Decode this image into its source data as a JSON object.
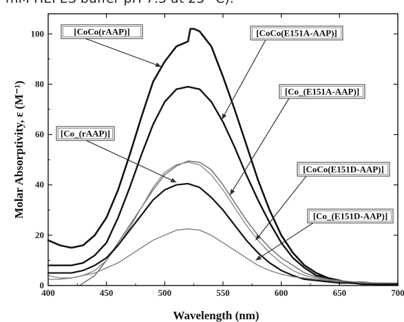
{
  "caption_fragment": "mM HEPES buffer pH 7.5 at 25 °C).",
  "chart_data": {
    "type": "line",
    "xlabel": "Wavelength (nm)",
    "ylabel": "Molar Absorptivity, ε (M⁻¹)",
    "xlim": [
      400,
      700
    ],
    "ylim": [
      0,
      108
    ],
    "xticks": [
      400,
      450,
      500,
      550,
      600,
      650,
      700
    ],
    "yticks": [
      0,
      20,
      40,
      60,
      80,
      100
    ],
    "grid": false,
    "series": [
      {
        "name": "[CoCo(rAAP)]",
        "color": "#111111",
        "width": 2.6,
        "x": [
          400,
          410,
          420,
          430,
          440,
          450,
          460,
          470,
          480,
          490,
          500,
          510,
          520,
          522,
          525,
          530,
          540,
          550,
          560,
          570,
          580,
          590,
          600,
          610,
          620,
          630,
          640,
          650,
          660,
          670,
          680,
          690,
          700
        ],
        "y": [
          18,
          16,
          15,
          16,
          20,
          27,
          38,
          52,
          67,
          81,
          89,
          95,
          97,
          102,
          102,
          101,
          95,
          83,
          70,
          56,
          42,
          30,
          20,
          13,
          8,
          5,
          3,
          2,
          1,
          1,
          0.5,
          0.5,
          0.5
        ]
      },
      {
        "name": "[CoCo(E151A-AAP)]",
        "color": "#111111",
        "width": 2.4,
        "x": [
          400,
          410,
          420,
          430,
          440,
          450,
          460,
          470,
          480,
          490,
          500,
          510,
          520,
          530,
          540,
          550,
          560,
          570,
          580,
          590,
          600,
          610,
          620,
          630,
          640,
          650,
          660,
          670,
          680,
          690,
          700
        ],
        "y": [
          8,
          8,
          8,
          9,
          12,
          17,
          27,
          39,
          52,
          64,
          73,
          78,
          79,
          78,
          73,
          65,
          55,
          44,
          34,
          25,
          17,
          11,
          7,
          4,
          3,
          2,
          1,
          1,
          0.5,
          0.5,
          0.5
        ]
      },
      {
        "name": "[Co_(E151A-AAP)]",
        "color": "#666666",
        "width": 1.4,
        "x": [
          427,
          440,
          450,
          460,
          470,
          480,
          490,
          500,
          510,
          520,
          530,
          540,
          550,
          560,
          570,
          580,
          590,
          600,
          610,
          620,
          630,
          640,
          650,
          660,
          670,
          680,
          690,
          700
        ],
        "y": [
          0,
          4,
          10,
          17,
          24,
          31,
          38,
          44,
          47.5,
          49.5,
          49,
          46,
          40,
          33,
          26,
          20,
          15,
          11,
          8,
          5,
          3.5,
          2.5,
          2,
          1.5,
          1,
          1,
          1,
          0.5
        ]
      },
      {
        "name": "[Co_(rAAP)]",
        "color": "#888888",
        "width": 1.4,
        "x": [
          400,
          410,
          420,
          430,
          440,
          450,
          460,
          470,
          480,
          490,
          500,
          510,
          520,
          530,
          540,
          550,
          560,
          570,
          580,
          590,
          600,
          610,
          620,
          630,
          640,
          650,
          660,
          670,
          680,
          690,
          700
        ],
        "y": [
          4,
          3,
          3,
          4,
          6,
          10,
          16,
          23,
          31,
          39,
          45,
          48,
          49,
          48,
          44,
          38,
          31,
          24,
          18,
          13,
          9,
          6,
          4,
          3,
          2,
          1.5,
          1,
          1,
          1,
          0.5,
          0.5
        ]
      },
      {
        "name": "[CoCo(E151D-AAP)]",
        "color": "#111111",
        "width": 2.2,
        "x": [
          400,
          410,
          420,
          430,
          440,
          450,
          460,
          470,
          480,
          490,
          500,
          510,
          520,
          530,
          540,
          550,
          560,
          570,
          580,
          590,
          600,
          610,
          620,
          630,
          640,
          650,
          660,
          670,
          680,
          690,
          700
        ],
        "y": [
          5,
          5,
          5,
          6,
          8,
          11,
          16,
          22,
          28,
          34,
          38,
          40,
          40.5,
          39,
          35,
          30,
          24,
          18,
          13,
          9,
          6,
          4,
          2.5,
          2,
          1.5,
          1,
          1,
          0.5,
          0.5,
          0.5,
          0.5
        ]
      },
      {
        "name": "[Co_(E151D-AAP)]",
        "color": "#777777",
        "width": 1.3,
        "x": [
          400,
          410,
          420,
          430,
          440,
          450,
          460,
          470,
          480,
          490,
          500,
          510,
          520,
          530,
          540,
          550,
          560,
          570,
          580,
          590,
          600,
          610,
          620,
          630,
          640,
          650,
          660,
          670,
          680,
          690,
          700
        ],
        "y": [
          2.5,
          2.5,
          3,
          4,
          5,
          7,
          9,
          12,
          15,
          18,
          20,
          22,
          22.5,
          22,
          20,
          17,
          14,
          11,
          8,
          6,
          4.5,
          3.5,
          3,
          2.5,
          2,
          2,
          1.5,
          1.5,
          1,
          1,
          1
        ]
      }
    ],
    "annotations": [
      {
        "label": "[CoCo(rAAP)]",
        "arrow_to": [
          497,
          87
        ]
      },
      {
        "label": "[CoCo(E151A-AAP)]",
        "arrow_to": [
          549,
          66
        ]
      },
      {
        "label": "[Co_(E151A-AAP)]",
        "arrow_to": [
          556,
          36
        ]
      },
      {
        "label": "[Co_(rAAP)]",
        "arrow_to": [
          510,
          41
        ]
      },
      {
        "label": "[CoCo(E151D-AAP)]",
        "arrow_to": [
          578,
          18
        ]
      },
      {
        "label": "[Co_(E151D-AAP)]",
        "arrow_to": [
          578,
          10
        ]
      }
    ]
  }
}
